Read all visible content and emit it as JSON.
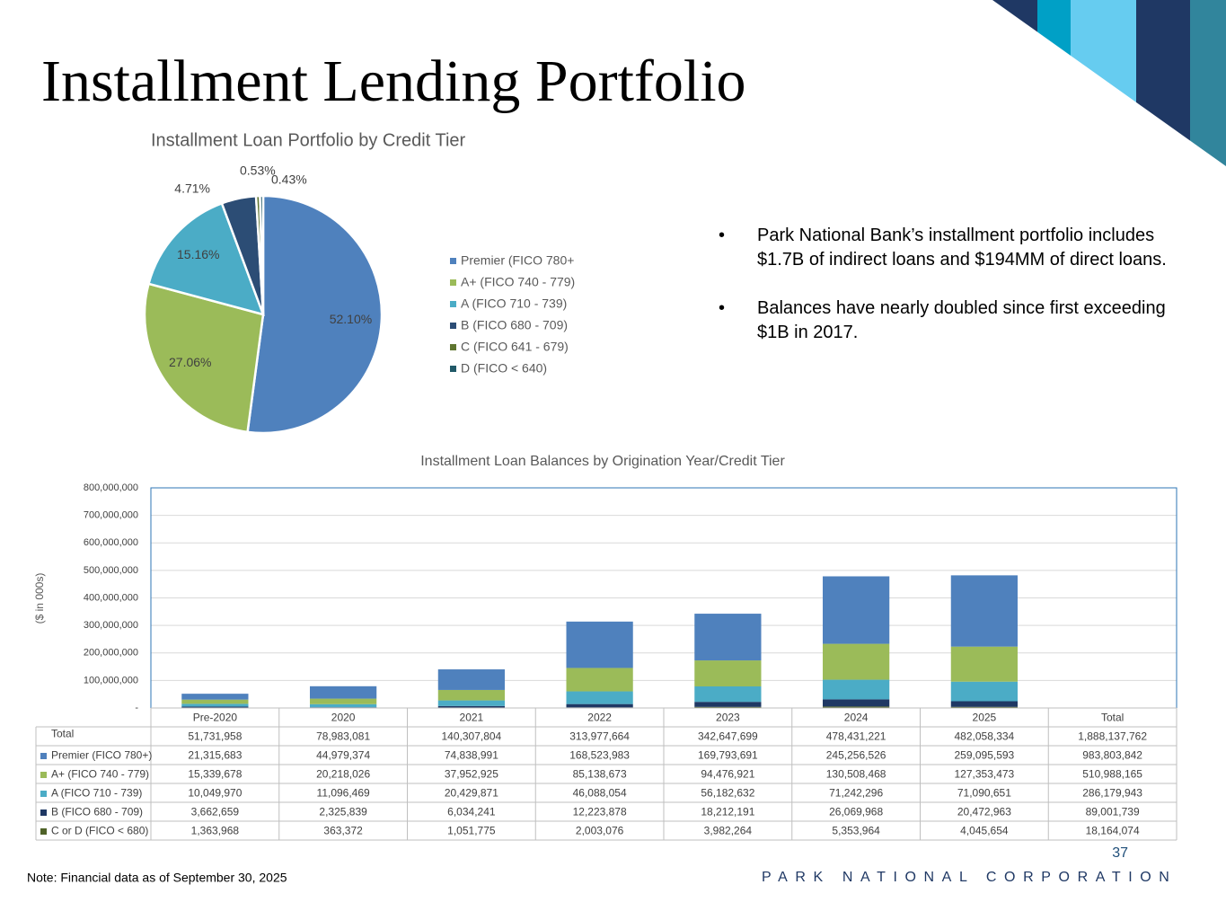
{
  "title": "Installment Lending Portfolio",
  "bullets": [
    "Park National Bank’s installment portfolio includes $1.7B of indirect loans and $194MM of direct loans.",
    "Balances have nearly doubled since first exceeding $1B in 2017."
  ],
  "note": "Note: Financial data as of September 30, 2025",
  "page_number": 37,
  "footer": "PARK NATIONAL CORPORATION",
  "chart_data": [
    {
      "type": "pie",
      "title": "Installment Loan Portfolio by Credit Tier",
      "categories": [
        "Premier (FICO 780+",
        "A+ (FICO 740 - 779)",
        "A (FICO 710 - 739)",
        "B (FICO 680 - 709)",
        "C (FICO 641 - 679)",
        "D (FICO < 640)"
      ],
      "values": [
        52.1,
        27.06,
        15.16,
        4.71,
        0.53,
        0.43
      ],
      "value_labels": [
        "52.10%",
        "27.06%",
        "15.16%",
        "4.71%",
        "0.53%",
        "0.43%"
      ],
      "colors": [
        "#4f81bd",
        "#9bbb59",
        "#4bacc6",
        "#2c4d75",
        "#5f7530",
        "#215968"
      ],
      "legend": "right"
    },
    {
      "type": "bar",
      "stacked": true,
      "title": "Installment Loan Balances by Origination Year/Credit Tier",
      "y_label": "($ in 000s)",
      "categories": [
        "Pre-2020",
        "2020",
        "2021",
        "2022",
        "2023",
        "2024",
        "2025"
      ],
      "series": [
        {
          "name": "Premier (FICO 780+)",
          "color": "#4f81bd",
          "values": [
            21315683,
            44979374,
            74838991,
            168523983,
            169793691,
            245256526,
            259095593
          ],
          "value_labels": [
            "21,315,683",
            "44,979,374",
            "74,838,991",
            "168,523,983",
            "169,793,691",
            "245,256,526",
            "259,095,593"
          ]
        },
        {
          "name": "A+ (FICO 740 - 779)",
          "color": "#9bbb59",
          "values": [
            15339678,
            20218026,
            37952925,
            85138673,
            94476921,
            130508468,
            127353473
          ],
          "value_labels": [
            "15,339,678",
            "20,218,026",
            "37,952,925",
            "85,138,673",
            "94,476,921",
            "130,508,468",
            "127,353,473"
          ]
        },
        {
          "name": "A (FICO 710 - 739)",
          "color": "#4bacc6",
          "values": [
            10049970,
            11096469,
            20429871,
            46088054,
            56182632,
            71242296,
            71090651
          ],
          "value_labels": [
            "10,049,970",
            "11,096,469",
            "20,429,871",
            "46,088,054",
            "56,182,632",
            "71,242,296",
            "71,090,651"
          ]
        },
        {
          "name": "B (FICO 680 - 709)",
          "color": "#1f3864",
          "values": [
            3662659,
            2325839,
            6034241,
            12223878,
            18212191,
            26069968,
            20472963
          ],
          "value_labels": [
            "3,662,659",
            "2,325,839",
            "6,034,241",
            "12,223,878",
            "18,212,191",
            "26,069,968",
            "20,472,963"
          ]
        },
        {
          "name": "C or D (FICO < 680)",
          "color": "#4f6228",
          "values": [
            1363968,
            363372,
            1051775,
            2003076,
            3982264,
            5353964,
            4045654
          ],
          "value_labels": [
            "1,363,968",
            "363,372",
            "1,051,775",
            "2,003,076",
            "3,982,264",
            "5,353,964",
            "4,045,654"
          ]
        }
      ],
      "ylim": [
        0,
        800000000
      ],
      "yticks": [
        {
          "value": 0,
          "label": "-"
        },
        {
          "value": 100000000,
          "label": "100,000,000"
        },
        {
          "value": 200000000,
          "label": "200,000,000"
        },
        {
          "value": 300000000,
          "label": "300,000,000"
        },
        {
          "value": 400000000,
          "label": "400,000,000"
        },
        {
          "value": 500000000,
          "label": "500,000,000"
        },
        {
          "value": 600000000,
          "label": "600,000,000"
        },
        {
          "value": 700000000,
          "label": "700,000,000"
        },
        {
          "value": 800000000,
          "label": "800,000,000"
        }
      ],
      "grid": true,
      "table": {
        "total_row": {
          "label": "Total",
          "values": [
            "51,731,958",
            "78,983,081",
            "140,307,804",
            "313,977,664",
            "342,647,699",
            "478,431,221",
            "482,058,334"
          ]
        },
        "total_column": {
          "label": "Total",
          "values": [
            "1,888,137,762",
            "983,803,842",
            "510,988,165",
            "286,179,943",
            "89,001,739",
            "18,164,074"
          ]
        }
      }
    }
  ]
}
